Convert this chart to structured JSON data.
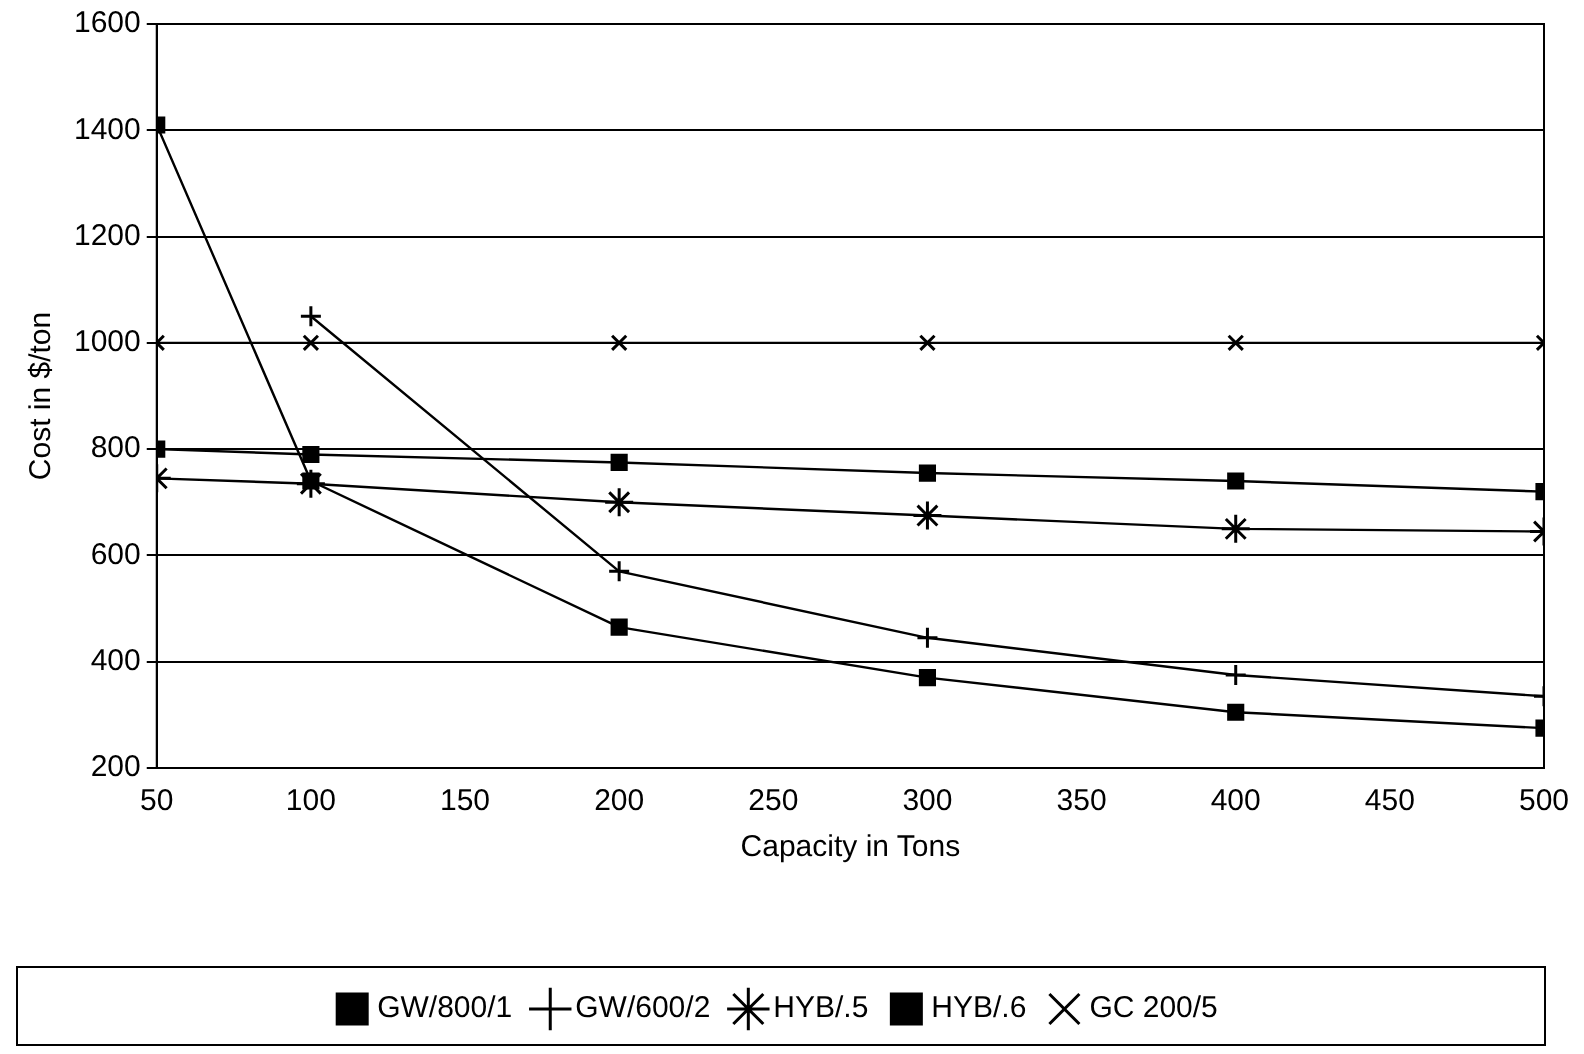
{
  "chart_data": {
    "type": "line",
    "xlabel": "Capacity in Tons",
    "ylabel": "Cost in $/ton",
    "x": [
      50,
      100,
      200,
      300,
      400,
      500
    ],
    "xlim": [
      50,
      500
    ],
    "xticks": [
      50,
      100,
      150,
      200,
      250,
      300,
      350,
      400,
      450,
      500
    ],
    "ylim": [
      200,
      1600
    ],
    "yticks": [
      200,
      400,
      600,
      800,
      1000,
      1200,
      1400,
      1600
    ],
    "grid": "y",
    "legend": "bottom",
    "line_style": "solid",
    "series": [
      {
        "name": "GW/800/1",
        "color": "#000000",
        "marker": "square",
        "values": [
          1410,
          740,
          465,
          370,
          305,
          275
        ]
      },
      {
        "name": "GW/600/2",
        "color": "#000000",
        "marker": "plus",
        "values": [
          null,
          1050,
          570,
          445,
          375,
          335
        ]
      },
      {
        "name": "HYB/.5",
        "color": "#000000",
        "marker": "cross",
        "values": [
          745,
          735,
          700,
          675,
          650,
          645
        ]
      },
      {
        "name": "HYB/.6",
        "color": "#000000",
        "marker": "square",
        "values": [
          800,
          790,
          775,
          755,
          740,
          720
        ]
      },
      {
        "name": "GC 200/5",
        "color": "#000000",
        "marker": "x",
        "values": [
          1000,
          1000,
          1000,
          1000,
          1000,
          1000
        ]
      }
    ]
  }
}
